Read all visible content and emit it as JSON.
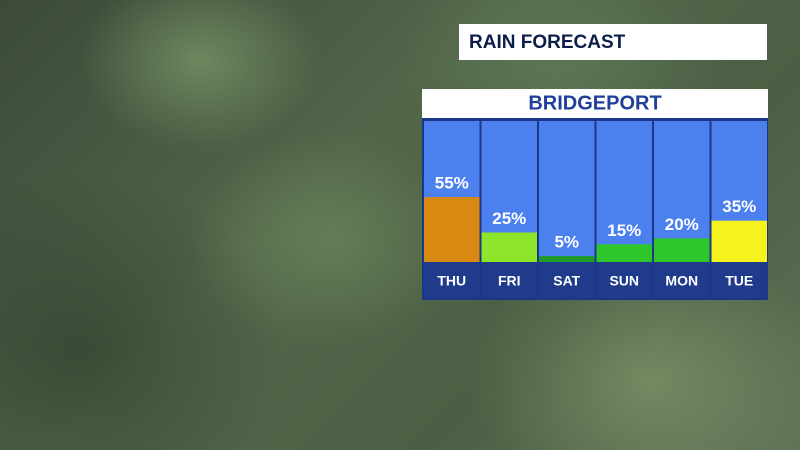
{
  "banner": "RAIN FORECAST",
  "chart_data": {
    "type": "bar",
    "title": "BRIDGEPORT",
    "categories": [
      "THU",
      "FRI",
      "SAT",
      "SUN",
      "MON",
      "TUE"
    ],
    "values": [
      55,
      25,
      5,
      15,
      20,
      35
    ],
    "value_labels": [
      "55%",
      "25%",
      "5%",
      "15%",
      "20%",
      "35%"
    ],
    "colors": [
      "#d98a12",
      "#8ee62a",
      "#1f9a2a",
      "#2fc62c",
      "#2fc62c",
      "#f5f21e"
    ]
  }
}
